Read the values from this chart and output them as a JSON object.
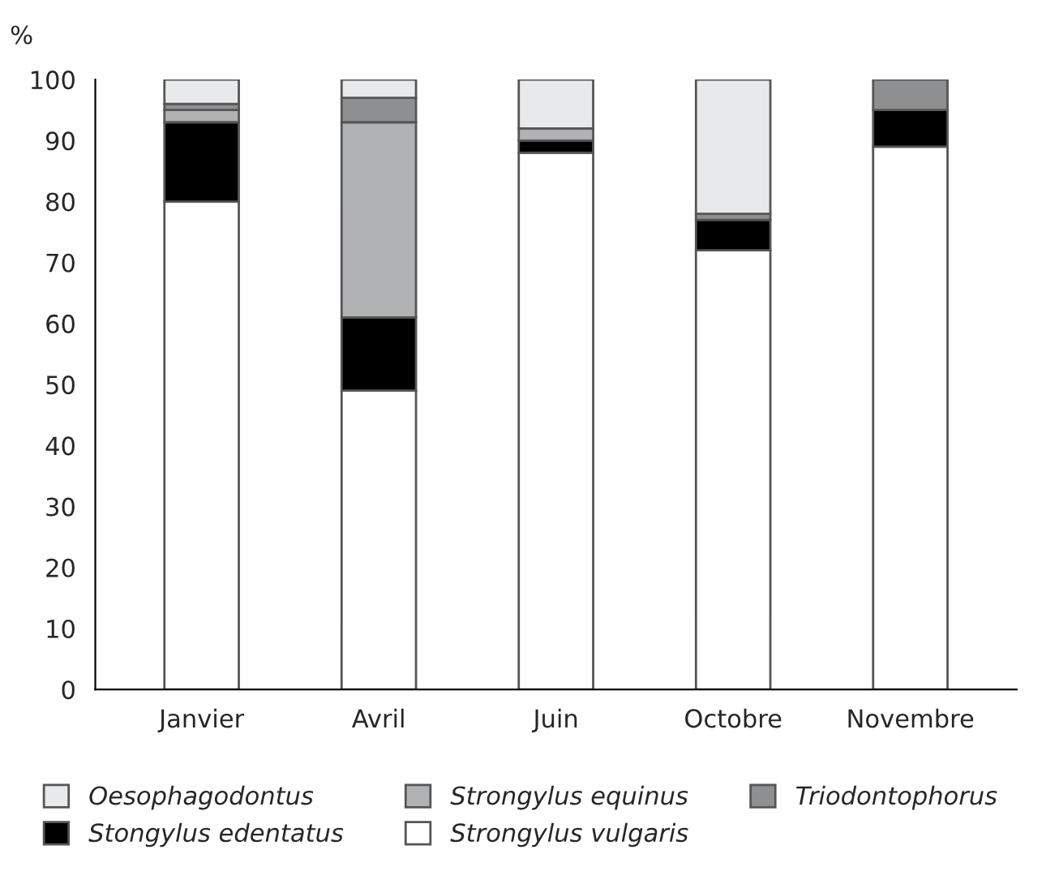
{
  "chart_data": {
    "type": "bar",
    "stacked": true,
    "ylabel": "%",
    "categories": [
      "Janvier",
      "Avril",
      "Juin",
      "Octobre",
      "Novembre"
    ],
    "series": [
      {
        "name": "Strongylus vulgaris",
        "color": "#ffffff",
        "values": [
          80,
          49,
          88,
          72,
          89
        ]
      },
      {
        "name": "Stongylus edentatus",
        "color": "#000000",
        "values": [
          13,
          12,
          2,
          5,
          6
        ]
      },
      {
        "name": "Strongylus equinus",
        "color": "#b1b2b4",
        "values": [
          2,
          32,
          2,
          0,
          0
        ]
      },
      {
        "name": "Triodontophorus",
        "color": "#8e8f91",
        "values": [
          1,
          4,
          0,
          1,
          5
        ]
      },
      {
        "name": "Oesophagodontus",
        "color": "#e8e9ea",
        "values": [
          4,
          3,
          8,
          22,
          0
        ]
      }
    ],
    "ylim": [
      0,
      100
    ],
    "yticks": [
      0,
      10,
      20,
      30,
      40,
      50,
      60,
      70,
      80,
      90,
      100
    ],
    "grid": false,
    "legend": "bottom"
  }
}
